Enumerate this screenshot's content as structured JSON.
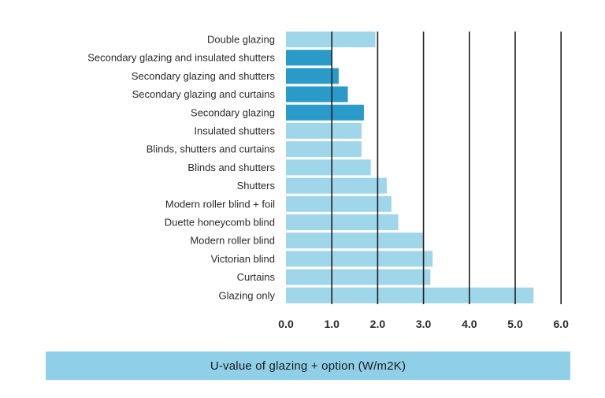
{
  "chart_data": {
    "type": "bar",
    "orientation": "horizontal",
    "categories": [
      "Double glazing",
      "Secondary glazing and insulated shutters",
      "Secondary glazing and shutters",
      "Secondary glazing and curtains",
      "Secondary glazing",
      "Insulated shutters",
      "Blinds, shutters and curtains",
      "Blinds and shutters",
      "Shutters",
      "Modern roller blind + foil",
      "Duette honeycomb blind",
      "Modern roller blind",
      "Victorian blind",
      "Curtains",
      "Glazing only"
    ],
    "values": [
      1.95,
      1.0,
      1.15,
      1.35,
      1.7,
      1.65,
      1.65,
      1.85,
      2.2,
      2.3,
      2.45,
      3.0,
      3.2,
      3.15,
      5.4
    ],
    "highlight": [
      false,
      true,
      true,
      true,
      true,
      false,
      false,
      false,
      false,
      false,
      false,
      false,
      false,
      false,
      false
    ],
    "xlabel": "U-value of glazing + option (W/m2K)",
    "xlim": [
      0,
      6
    ],
    "ticks": [
      "0.0",
      "1.0",
      "2.0",
      "3.0",
      "4.0",
      "5.0",
      "6.0"
    ],
    "tick_values": [
      0,
      1,
      2,
      3,
      4,
      5,
      6
    ],
    "grid": true,
    "colors": {
      "bar": "#9fd6ea",
      "bar_highlight": "#2a9bc9",
      "gridline": "#1f1f1f",
      "xlabel_box": "#8fd0e8"
    }
  }
}
